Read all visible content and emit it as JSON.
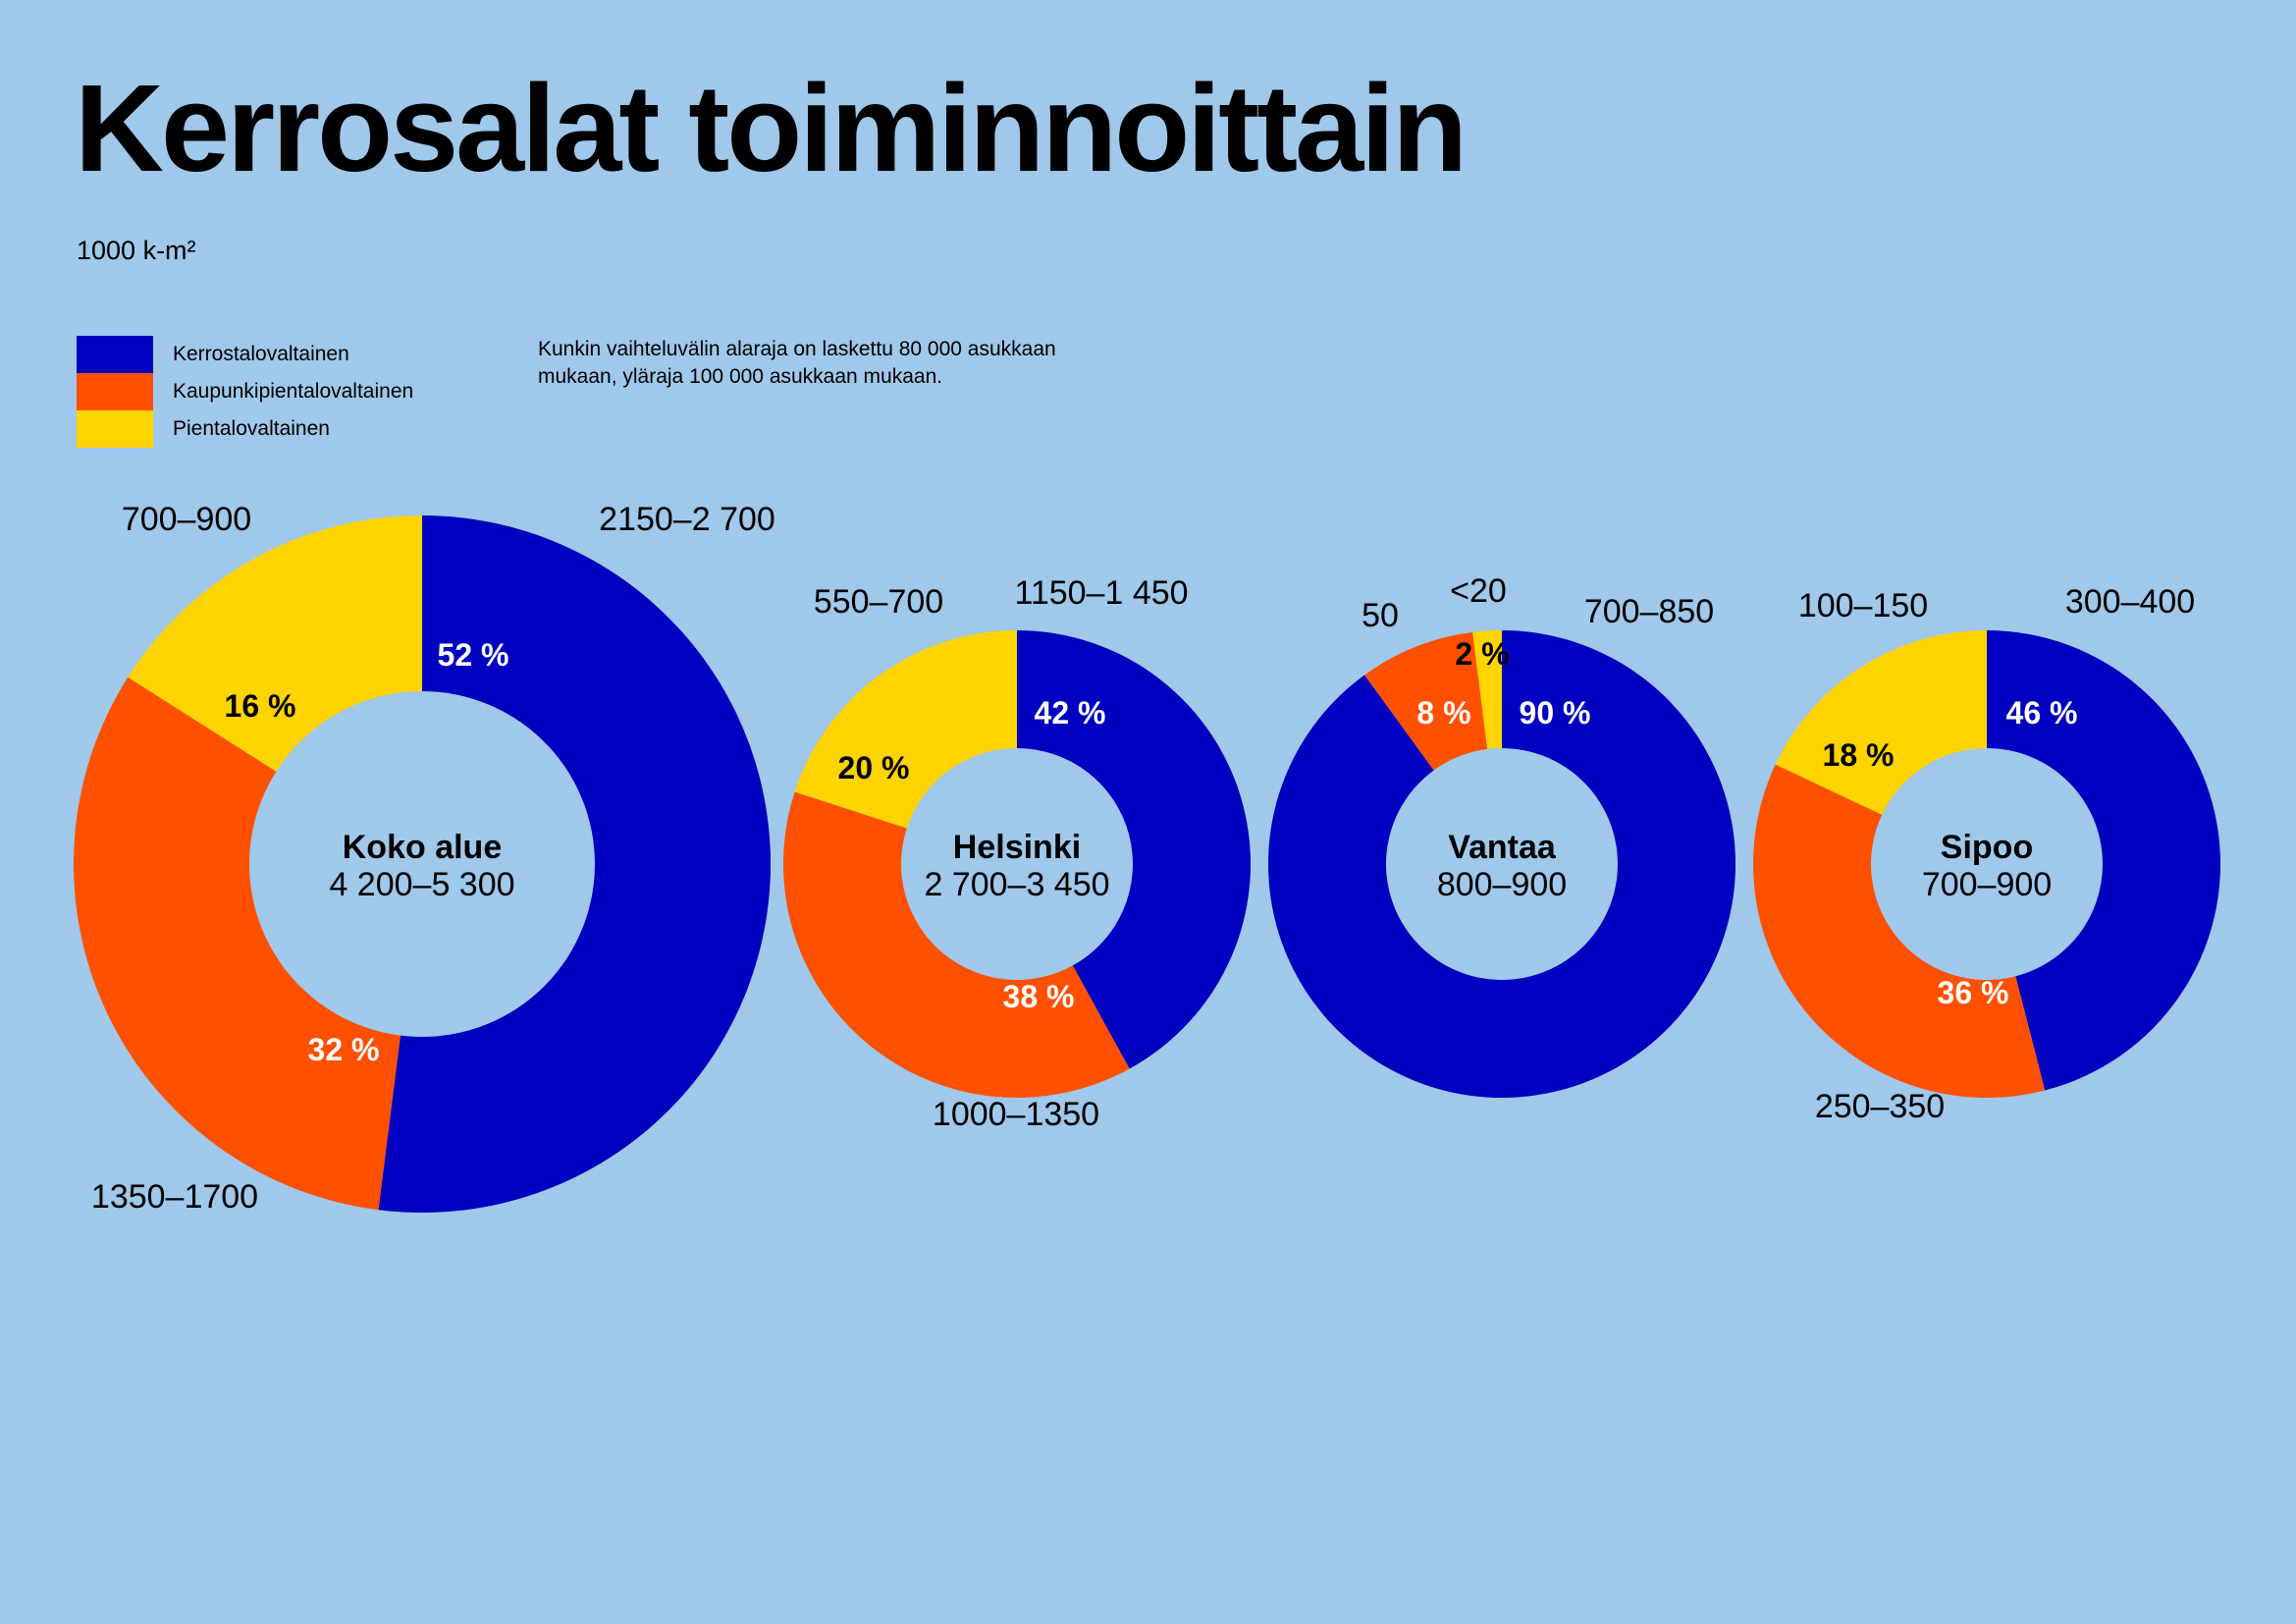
{
  "title": "Kerrosalat toiminnoittain",
  "unit": "1000 k-m²",
  "note": "Kunkin vaihteluvälin alaraja on laskettu 80 000 asukkaan mukaan, yläraja 100 000 asukkaan mukaan.",
  "colors": {
    "background": "#9fc8ea",
    "kerrostalo": "#0000c0",
    "kaupunkipientalo": "#ff5000",
    "pientalo": "#ffd400"
  },
  "legend": [
    {
      "label": "Kerrostalovaltainen",
      "color": "#0000c0"
    },
    {
      "label": "Kaupunkipientalovaltainen",
      "color": "#ff5000"
    },
    {
      "label": "Pientalovaltainen",
      "color": "#ffd400"
    }
  ],
  "chart_data": [
    {
      "type": "pie",
      "name": "Koko alue",
      "total": "4 200–5 300",
      "slices": [
        {
          "category": "Kerrostalovaltainen",
          "percent": 52,
          "label": "52 %",
          "range": "2150–2 700"
        },
        {
          "category": "Kaupunkipientalovaltainen",
          "percent": 32,
          "label": "32 %",
          "range": "1350–1700"
        },
        {
          "category": "Pientalovaltainen",
          "percent": 16,
          "label": "16 %",
          "range": "700–900"
        }
      ]
    },
    {
      "type": "pie",
      "name": "Helsinki",
      "total": "2 700–3 450",
      "slices": [
        {
          "category": "Kerrostalovaltainen",
          "percent": 42,
          "label": "42 %",
          "range": "1150–1 450"
        },
        {
          "category": "Kaupunkipientalovaltainen",
          "percent": 38,
          "label": "38 %",
          "range": "1000–1350"
        },
        {
          "category": "Pientalovaltainen",
          "percent": 20,
          "label": "20 %",
          "range": "550–700"
        }
      ]
    },
    {
      "type": "pie",
      "name": "Vantaa",
      "total": "800–900",
      "slices": [
        {
          "category": "Kerrostalovaltainen",
          "percent": 90,
          "label": "90 %",
          "range": "700–850"
        },
        {
          "category": "Kaupunkipientalovaltainen",
          "percent": 8,
          "label": "8 %",
          "range": "50"
        },
        {
          "category": "Pientalovaltainen",
          "percent": 2,
          "label": "2 %",
          "range": "<20"
        }
      ]
    },
    {
      "type": "pie",
      "name": "Sipoo",
      "total": "700–900",
      "slices": [
        {
          "category": "Kerrostalovaltainen",
          "percent": 46,
          "label": "46 %",
          "range": "300–400"
        },
        {
          "category": "Kaupunkipientalovaltainen",
          "percent": 36,
          "label": "36 %",
          "range": "250–350"
        },
        {
          "category": "Pientalovaltainen",
          "percent": 18,
          "label": "18 %",
          "range": "100–150"
        }
      ]
    }
  ]
}
